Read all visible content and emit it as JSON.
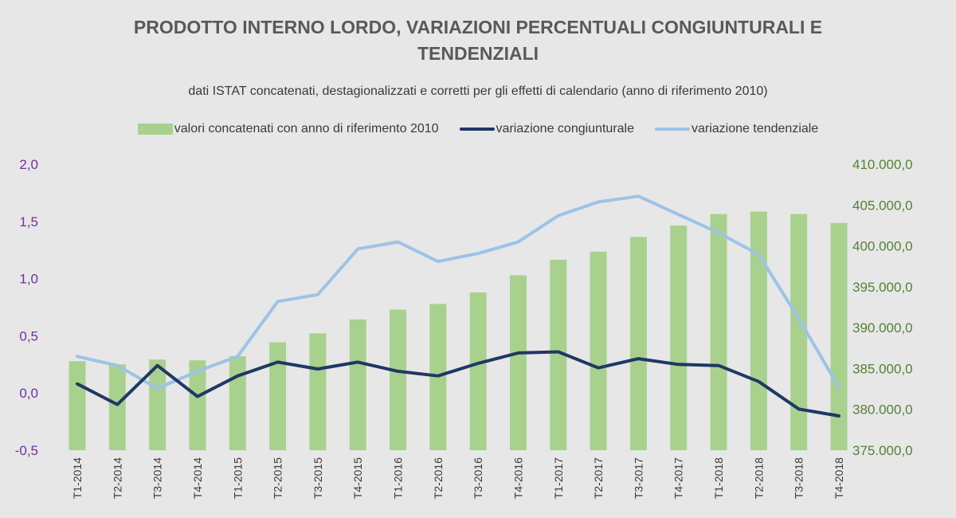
{
  "chart_data": {
    "type": "bar+line",
    "title_line1": "PRODOTTO INTERNO LORDO, VARIAZIONI PERCENTUALI CONGIUNTURALI E",
    "title_line2": "TENDENZIALI",
    "subtitle": "dati ISTAT concatenati, destagionalizzati e corretti per gli effetti di calendario (anno di riferimento 2010)",
    "categories": [
      "T1-2014",
      "T2-2014",
      "T3-2014",
      "T4-2014",
      "T1-2015",
      "T2-2015",
      "T3-2015",
      "T4-2015",
      "T1-2016",
      "T2-2016",
      "T3-2016",
      "T4-2016",
      "T1-2017",
      "T2-2017",
      "T3-2017",
      "T4-2017",
      "T1-2018",
      "T2-2018",
      "T3-2018",
      "T4-2018"
    ],
    "left_axis": {
      "min": -0.5,
      "max": 2.0,
      "ticks": [
        "2,0",
        "1,5",
        "1,0",
        "0,5",
        "0,0",
        "-0,5"
      ],
      "tick_values": [
        2.0,
        1.5,
        1.0,
        0.5,
        0.0,
        -0.5
      ]
    },
    "right_axis": {
      "min": 375000,
      "max": 410000,
      "ticks": [
        "410.000,0",
        "405.000,0",
        "400.000,0",
        "395.000,0",
        "390.000,0",
        "385.000,0",
        "380.000,0",
        "375.000,0"
      ],
      "tick_values": [
        410000,
        405000,
        400000,
        395000,
        390000,
        385000,
        380000,
        375000
      ]
    },
    "series": [
      {
        "name": "valori concatenati con anno di riferimento 2010",
        "kind": "bar",
        "axis": "right",
        "color": "#a9d18e",
        "values": [
          385900,
          385500,
          386100,
          386000,
          386500,
          388200,
          389300,
          391000,
          392200,
          392900,
          394300,
          396400,
          398300,
          399300,
          401100,
          402500,
          403900,
          404200,
          403900,
          402800
        ]
      },
      {
        "name": "variazione congiunturale",
        "kind": "line",
        "axis": "left",
        "color": "#1f3864",
        "values": [
          0.08,
          -0.1,
          0.24,
          -0.03,
          0.15,
          0.27,
          0.21,
          0.27,
          0.19,
          0.15,
          0.26,
          0.35,
          0.36,
          0.22,
          0.3,
          0.25,
          0.24,
          0.1,
          -0.14,
          -0.2
        ]
      },
      {
        "name": "variazione tendenziale",
        "kind": "line",
        "axis": "left",
        "color": "#9dc3e6",
        "values": [
          0.32,
          0.24,
          0.04,
          0.19,
          0.32,
          0.8,
          0.86,
          1.26,
          1.32,
          1.15,
          1.22,
          1.32,
          1.55,
          1.67,
          1.72,
          1.56,
          1.4,
          1.21,
          0.65,
          0.05
        ]
      }
    ]
  }
}
